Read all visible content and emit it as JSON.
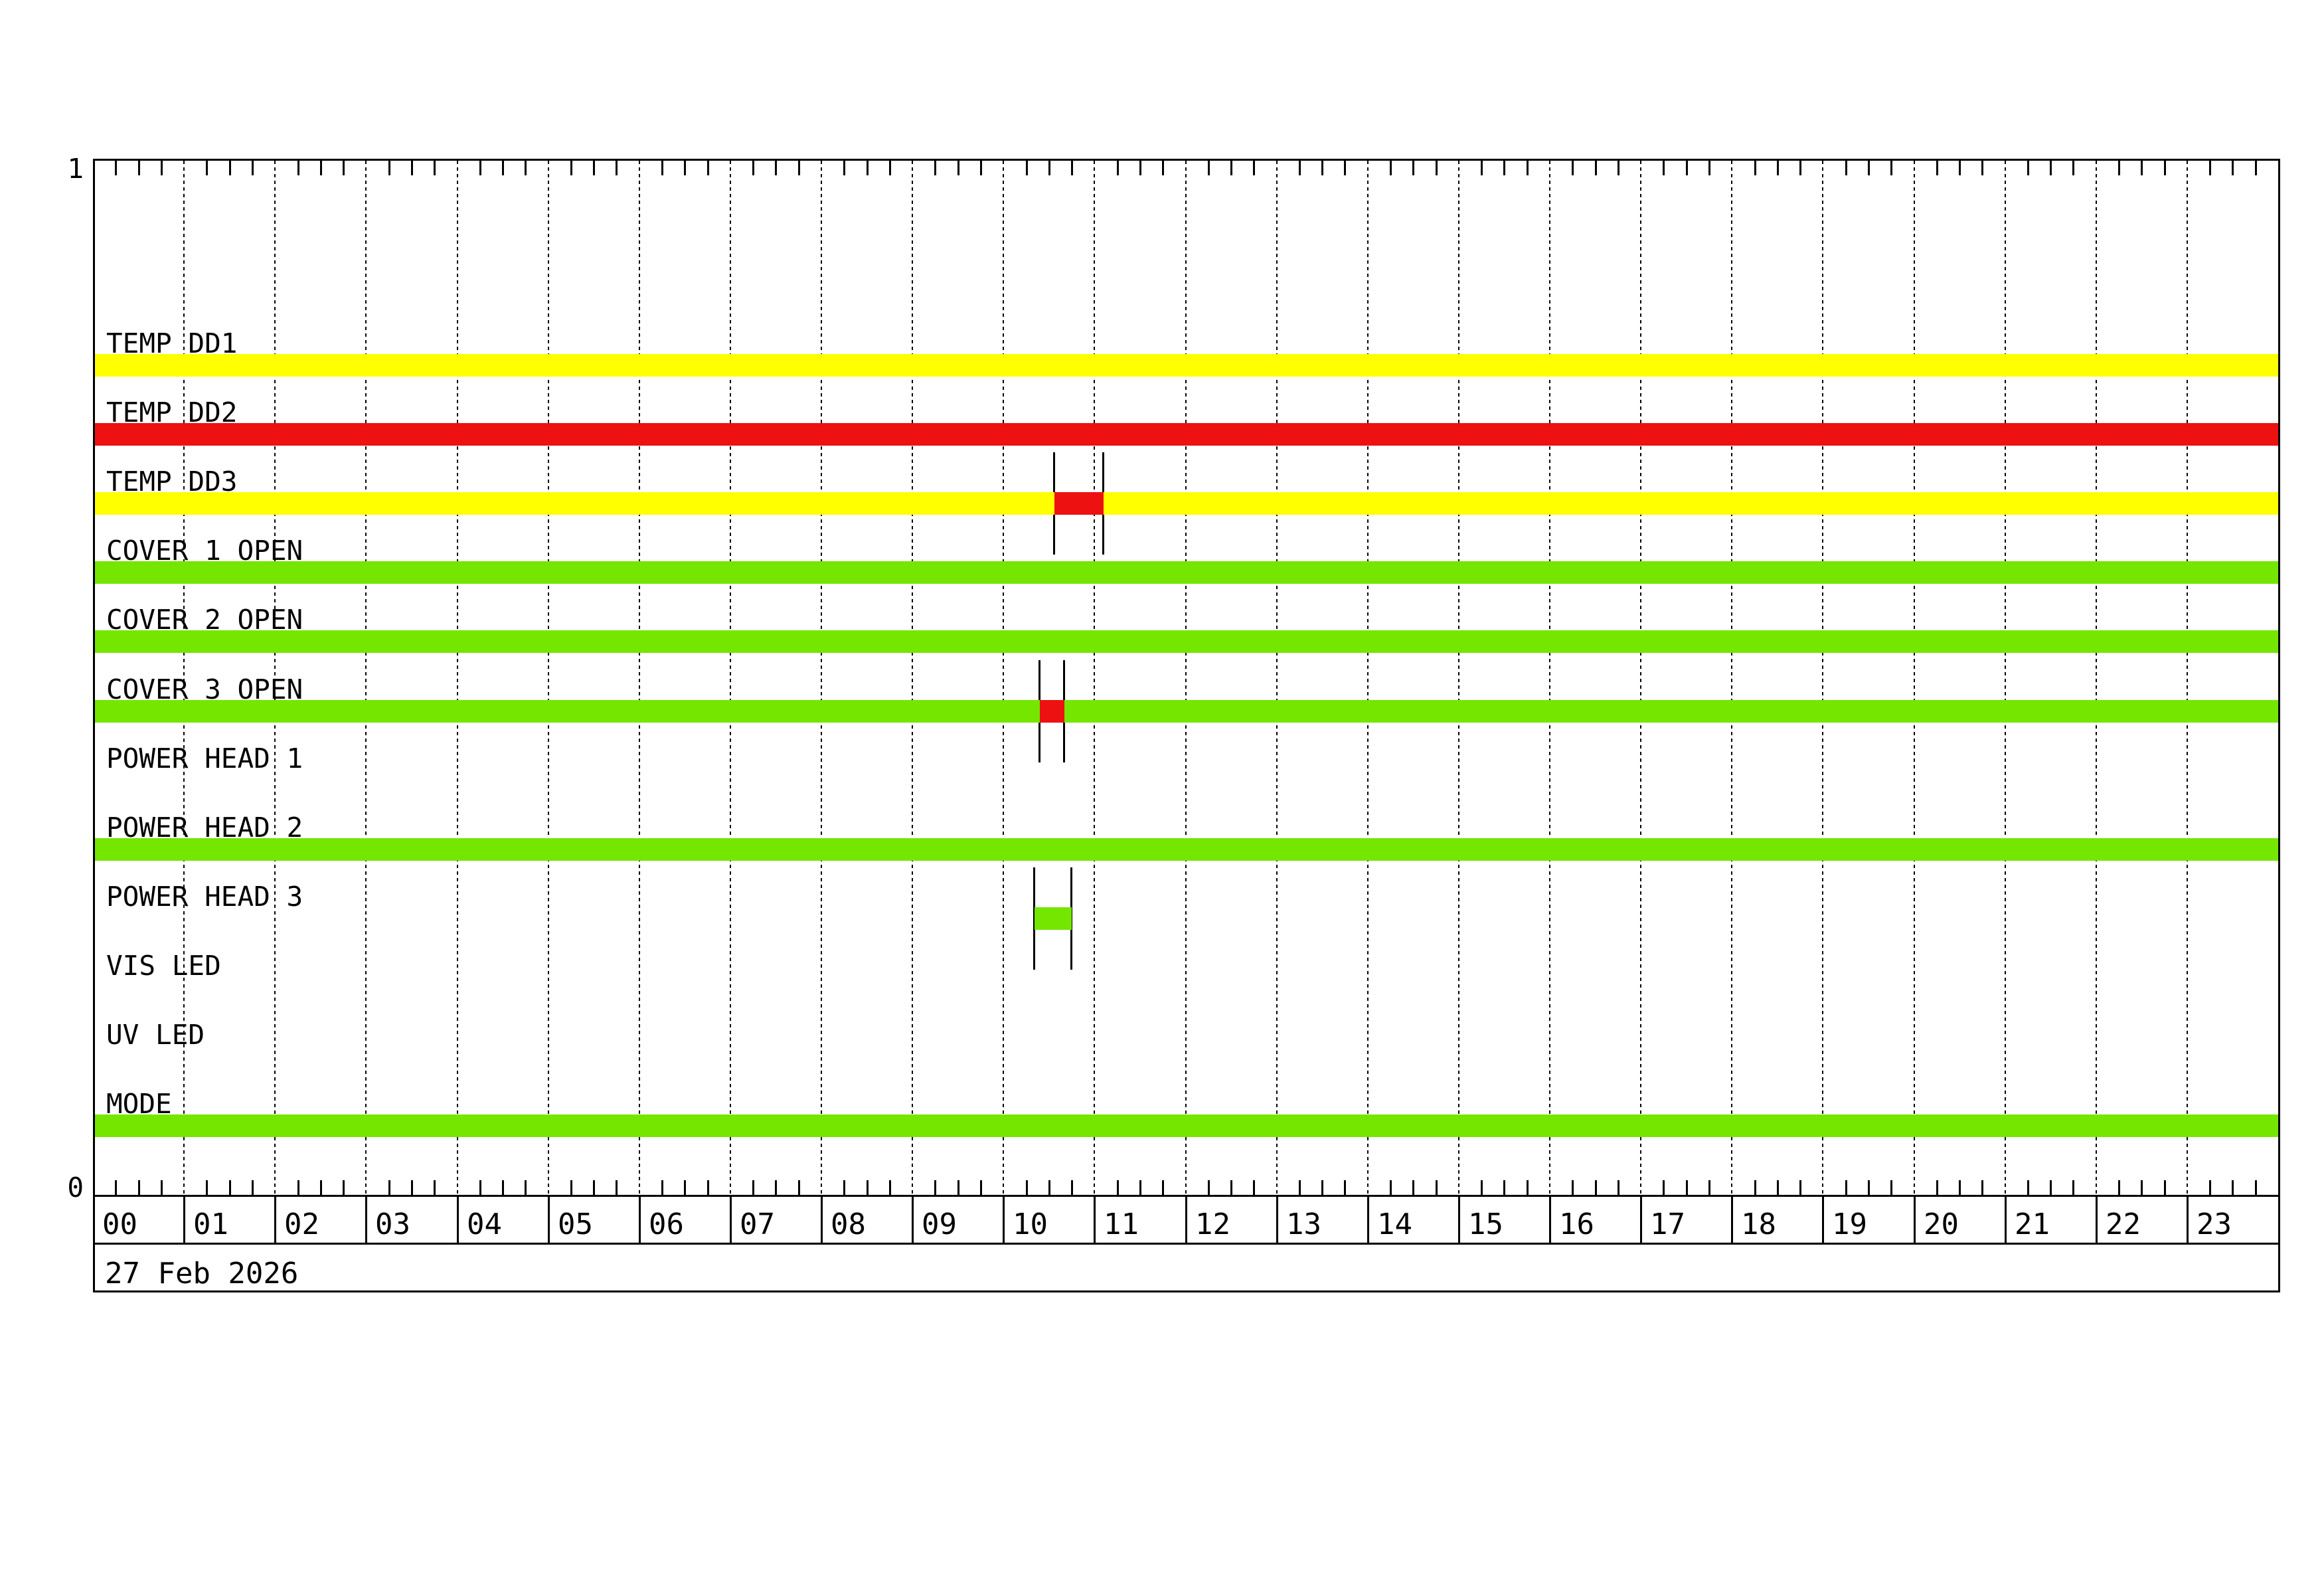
{
  "page": {
    "background": "#FFFFFF"
  },
  "colors": {
    "ok_green": "#74E600",
    "warn_yellow": "#FFFF00",
    "alarm_red": "#EE1111",
    "axis_black": "#000000"
  },
  "chart_data": {
    "type": "bar",
    "subtype": "status-timeline",
    "title": "",
    "date": "27 Feb 2026",
    "x_axis": {
      "unit": "hour of day",
      "range_hours": [
        0,
        24
      ],
      "tick_labels": [
        "00",
        "01",
        "02",
        "03",
        "04",
        "05",
        "06",
        "07",
        "08",
        "09",
        "10",
        "11",
        "12",
        "13",
        "14",
        "15",
        "16",
        "17",
        "18",
        "19",
        "20",
        "21",
        "22",
        "23"
      ],
      "minor_tick_interval_minutes": 15,
      "gridlines": "dotted vertical line at every hour"
    },
    "y_axis": {
      "range": [
        0,
        1
      ],
      "top_tick_label": "1",
      "bottom_tick_label": "0"
    },
    "legend": null,
    "rows": [
      {
        "label": "TEMP DD1",
        "segments": [
          {
            "start": 0,
            "end": 24,
            "color": "#FFFF00"
          }
        ]
      },
      {
        "label": "TEMP DD2",
        "segments": [
          {
            "start": 0,
            "end": 24,
            "color": "#EE1111"
          }
        ]
      },
      {
        "label": "TEMP DD3",
        "segments": [
          {
            "start": 0,
            "end": 24,
            "color": "#FFFF00"
          },
          {
            "start": 10.56,
            "end": 11.1,
            "color": "#EE1111",
            "marked": true
          }
        ]
      },
      {
        "label": "COVER 1 OPEN",
        "segments": [
          {
            "start": 0,
            "end": 24,
            "color": "#74E600"
          }
        ]
      },
      {
        "label": "COVER 2 OPEN",
        "segments": [
          {
            "start": 0,
            "end": 24,
            "color": "#74E600"
          }
        ]
      },
      {
        "label": "COVER 3 OPEN",
        "segments": [
          {
            "start": 0,
            "end": 24,
            "color": "#74E600"
          },
          {
            "start": 10.4,
            "end": 10.67,
            "color": "#EE1111",
            "marked": true
          }
        ]
      },
      {
        "label": "POWER HEAD 1",
        "segments": []
      },
      {
        "label": "POWER HEAD 2",
        "segments": [
          {
            "start": 0,
            "end": 24,
            "color": "#74E600"
          }
        ]
      },
      {
        "label": "POWER HEAD 3",
        "segments": [
          {
            "start": 10.34,
            "end": 10.75,
            "color": "#74E600",
            "marked": true
          }
        ]
      },
      {
        "label": "VIS LED",
        "segments": []
      },
      {
        "label": "UV LED",
        "segments": []
      },
      {
        "label": "MODE",
        "segments": [
          {
            "start": 0,
            "end": 24,
            "color": "#74E600"
          }
        ]
      }
    ]
  }
}
